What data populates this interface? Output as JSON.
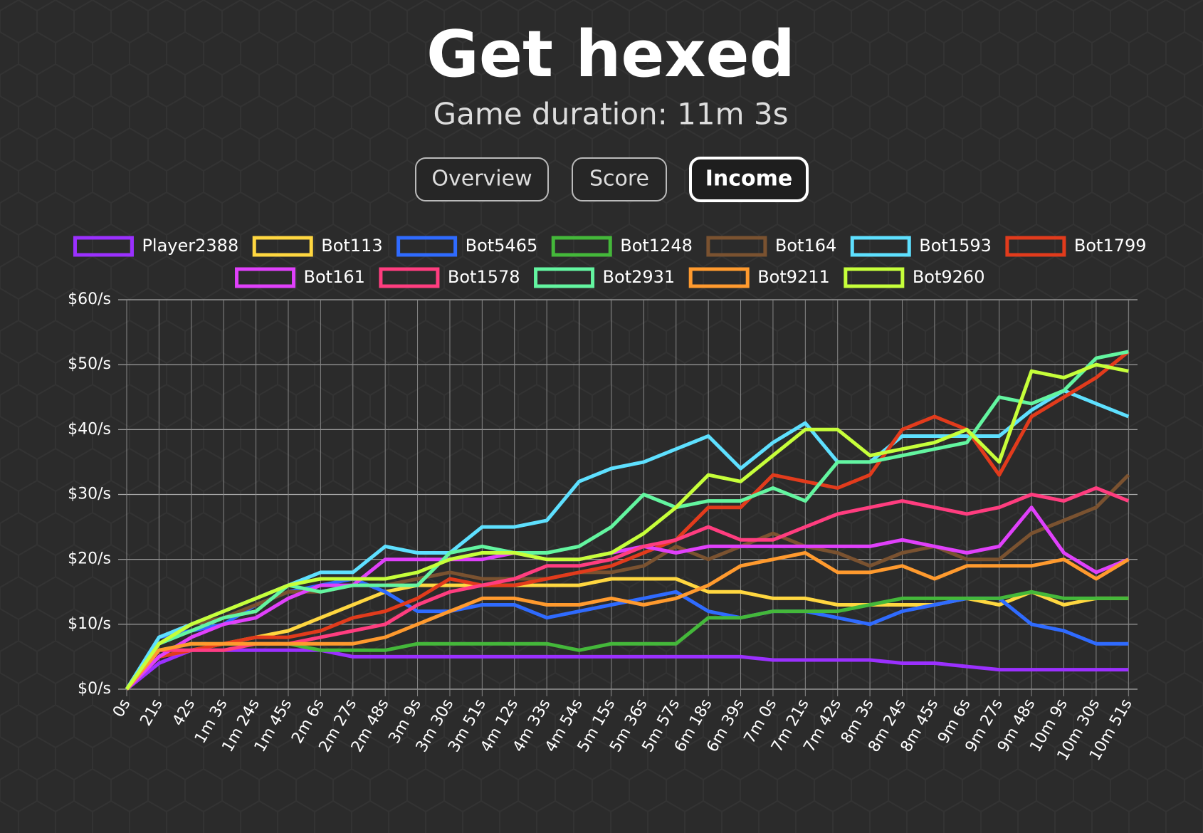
{
  "chart_data": {
    "type": "line",
    "title": "Get hexed",
    "subtitle": "Game duration: 11m 3s",
    "tabs": [
      "Overview",
      "Score",
      "Income"
    ],
    "active_tab": 2,
    "categories": [
      "0s",
      "21s",
      "42s",
      "1m 3s",
      "1m 24s",
      "1m 45s",
      "2m 6s",
      "2m 27s",
      "2m 48s",
      "3m 9s",
      "3m 30s",
      "3m 51s",
      "4m 12s",
      "4m 33s",
      "4m 54s",
      "5m 15s",
      "5m 36s",
      "5m 57s",
      "6m 18s",
      "6m 39s",
      "7m 0s",
      "7m 21s",
      "7m 42s",
      "8m 3s",
      "8m 24s",
      "8m 45s",
      "9m 6s",
      "9m 27s",
      "9m 48s",
      "10m 9s",
      "10m 30s",
      "10m 51s"
    ],
    "ylim": [
      0,
      60
    ],
    "yticks": [
      {
        "value": 0,
        "label": "$0/s"
      },
      {
        "value": 10,
        "label": "$10/s"
      },
      {
        "value": 20,
        "label": "$20/s"
      },
      {
        "value": 30,
        "label": "$30/s"
      },
      {
        "value": 40,
        "label": "$40/s"
      },
      {
        "value": 50,
        "label": "$50/s"
      },
      {
        "value": 60,
        "label": "$60/s"
      }
    ],
    "grid": true,
    "legend": "top",
    "series": [
      {
        "name": "Player2388",
        "color": "#9b30ff",
        "values": [
          0,
          4,
          6,
          6,
          6,
          6,
          6,
          5,
          5,
          5,
          5,
          5,
          5,
          5,
          5,
          5,
          5,
          5,
          5,
          5,
          4.5,
          4.5,
          4.5,
          4.5,
          4,
          4,
          3.5,
          3,
          3,
          3,
          3,
          3
        ]
      },
      {
        "name": "Bot113",
        "color": "#ffd740",
        "values": [
          0,
          5,
          6,
          7,
          8,
          9,
          11,
          13,
          15,
          16,
          16,
          16,
          16,
          16,
          16,
          17,
          17,
          17,
          15,
          15,
          14,
          14,
          13,
          13,
          13,
          13,
          14,
          13,
          15,
          13,
          14,
          14
        ]
      },
      {
        "name": "Bot5465",
        "color": "#2f6bff",
        "values": [
          0,
          8,
          9,
          10,
          13,
          15,
          16,
          17,
          15,
          12,
          12,
          13,
          13,
          11,
          12,
          13,
          14,
          15,
          12,
          11,
          12,
          12,
          11,
          10,
          12,
          13,
          14,
          14,
          10,
          9,
          7,
          7
        ]
      },
      {
        "name": "Bot1248",
        "color": "#44b83a",
        "values": [
          0,
          6,
          7,
          7,
          7,
          7,
          6,
          6,
          6,
          7,
          7,
          7,
          7,
          7,
          6,
          7,
          7,
          7,
          11,
          11,
          12,
          12,
          12,
          13,
          14,
          14,
          14,
          14,
          15,
          14,
          14,
          14
        ]
      },
      {
        "name": "Bot164",
        "color": "#7a5230",
        "values": [
          0,
          7,
          10,
          11,
          13,
          15,
          15,
          16,
          16,
          17,
          18,
          17,
          17,
          17,
          18,
          18,
          19,
          22,
          20,
          22,
          24,
          22,
          21,
          19,
          21,
          22,
          20,
          20,
          24,
          26,
          28,
          33
        ]
      },
      {
        "name": "Bot1593",
        "color": "#5ee0ff",
        "values": [
          0,
          8,
          10,
          12,
          14,
          16,
          18,
          18,
          22,
          21,
          21,
          25,
          25,
          26,
          32,
          34,
          35,
          37,
          39,
          34,
          38,
          41,
          35,
          35,
          39,
          39,
          39,
          39,
          43,
          46,
          44,
          42
        ]
      },
      {
        "name": "Bot1799",
        "color": "#e23b1c",
        "values": [
          0,
          5,
          6,
          7,
          8,
          8,
          9,
          11,
          12,
          14,
          17,
          16,
          16,
          17,
          18,
          19,
          21,
          23,
          28,
          28,
          33,
          32,
          31,
          33,
          40,
          42,
          40,
          33,
          42,
          45,
          48,
          52
        ]
      },
      {
        "name": "Bot161",
        "color": "#e040fb",
        "values": [
          0,
          5,
          8,
          10,
          11,
          14,
          16,
          16,
          20,
          20,
          20,
          20,
          21,
          20,
          20,
          21,
          22,
          21,
          22,
          22,
          22,
          22,
          22,
          22,
          23,
          22,
          21,
          22,
          28,
          21,
          18,
          20
        ]
      },
      {
        "name": "Bot1578",
        "color": "#ff3d7f",
        "values": [
          0,
          6,
          6,
          6,
          7,
          7,
          8,
          9,
          10,
          13,
          15,
          16,
          17,
          19,
          19,
          20,
          22,
          23,
          25,
          23,
          23,
          25,
          27,
          28,
          29,
          28,
          27,
          28,
          30,
          29,
          31,
          29
        ]
      },
      {
        "name": "Bot2931",
        "color": "#63f5a0",
        "values": [
          0,
          7,
          9,
          11,
          12,
          16,
          15,
          16,
          16,
          16,
          21,
          22,
          21,
          21,
          22,
          25,
          30,
          28,
          29,
          29,
          31,
          29,
          35,
          35,
          36,
          37,
          38,
          45,
          44,
          46,
          51,
          52
        ]
      },
      {
        "name": "Bot9211",
        "color": "#ff9a2e",
        "values": [
          0,
          6,
          7,
          7,
          7,
          7,
          7,
          7,
          8,
          10,
          12,
          14,
          14,
          13,
          13,
          14,
          13,
          14,
          16,
          19,
          20,
          21,
          18,
          18,
          19,
          17,
          19,
          19,
          19,
          20,
          17,
          20
        ]
      },
      {
        "name": "Bot9260",
        "color": "#c6ff3a",
        "values": [
          0,
          7,
          10,
          12,
          14,
          16,
          17,
          17,
          17,
          18,
          20,
          21,
          21,
          20,
          20,
          21,
          24,
          28,
          33,
          32,
          36,
          40,
          40,
          36,
          37,
          38,
          40,
          35,
          49,
          48,
          50,
          49
        ]
      }
    ]
  }
}
